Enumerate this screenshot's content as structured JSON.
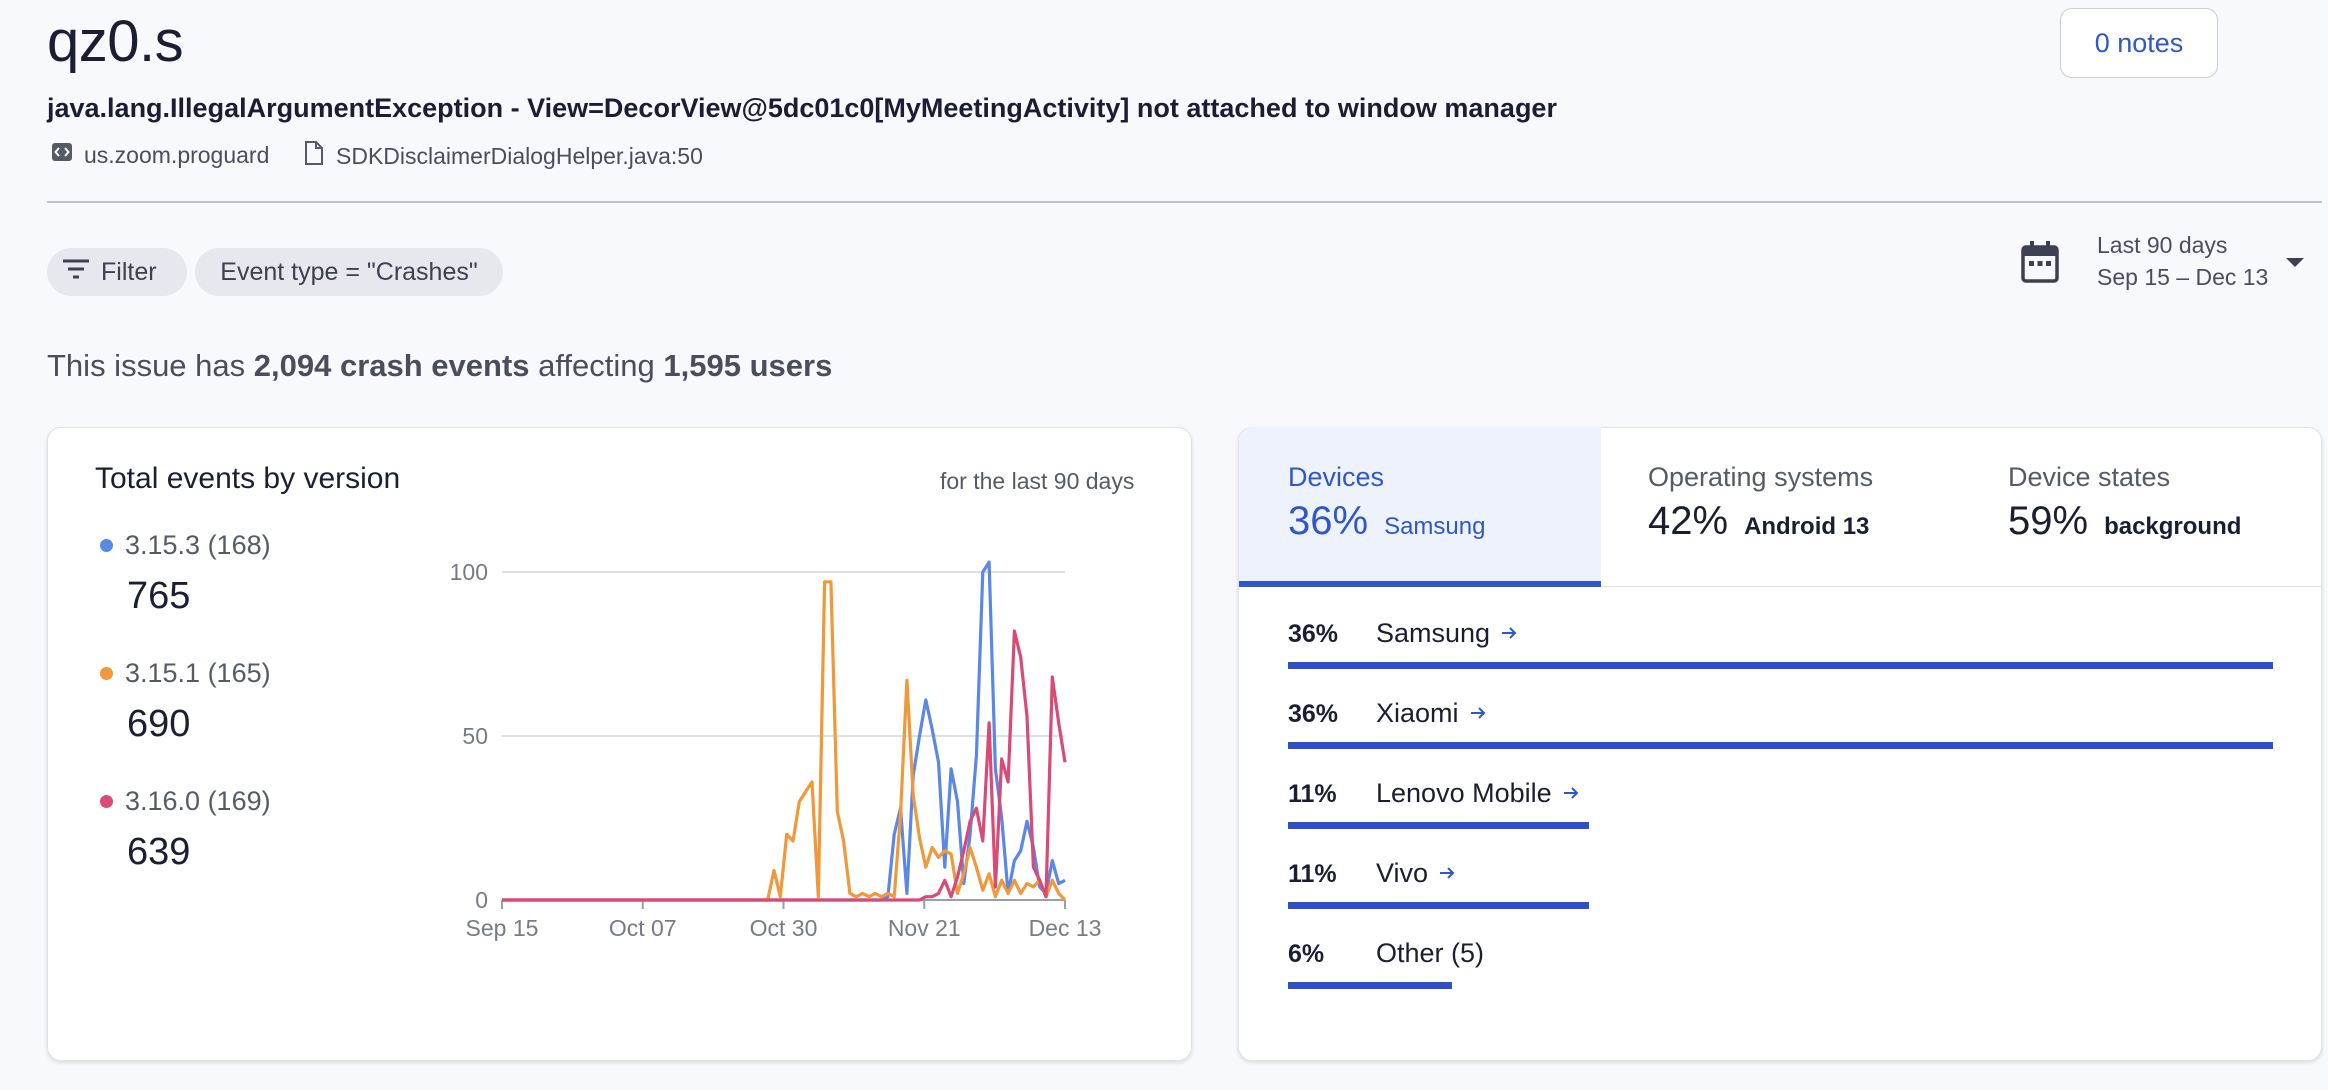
{
  "header": {
    "title": "qz0.s",
    "notes_button": "0 notes",
    "exception": "java.lang.IllegalArgumentException - View=DecorView@5dc01c0[MyMeetingActivity] not attached to window manager",
    "package_icon": "code-icon",
    "package": "us.zoom.proguard",
    "file_icon": "file-icon",
    "file": "SDKDisclaimerDialogHelper.java:50"
  },
  "filters": {
    "filter_label": "Filter",
    "event_type": "Event type = \"Crashes\""
  },
  "date_range": {
    "label": "Last 90 days",
    "range": "Sep 15 – Dec 13"
  },
  "summary": {
    "prefix": "This issue has",
    "events": "2,094 crash events",
    "middle": "affecting",
    "users": "1,595 users"
  },
  "versions_card": {
    "title": "Total events by version",
    "subtitle": "for the last 90 days",
    "legend": [
      {
        "version": "3.15.3 (168)",
        "total": "765",
        "color": "#5b87e6"
      },
      {
        "version": "3.15.1 (165)",
        "total": "690",
        "color": "#f0983a"
      },
      {
        "version": "3.16.0 (169)",
        "total": "639",
        "color": "#d94a76"
      }
    ]
  },
  "chart_data": {
    "type": "line",
    "x_ticks": [
      "Sep 15",
      "Oct 07",
      "Oct 30",
      "Nov 21",
      "Dec 13"
    ],
    "y_ticks": [
      "0",
      "50",
      "100"
    ],
    "ylim": [
      0,
      100
    ],
    "x_index_range": [
      0,
      89
    ],
    "grid": true,
    "series": [
      {
        "name": "3.15.3 (168)",
        "color": "#5b87e6",
        "points": [
          [
            0,
            0
          ],
          [
            60,
            0
          ],
          [
            61,
            1
          ],
          [
            62,
            20
          ],
          [
            63,
            28
          ],
          [
            64,
            2
          ],
          [
            65,
            38
          ],
          [
            66,
            50
          ],
          [
            67,
            61
          ],
          [
            68,
            52
          ],
          [
            69,
            42
          ],
          [
            70,
            10
          ],
          [
            71,
            40
          ],
          [
            72,
            30
          ],
          [
            73,
            5
          ],
          [
            74,
            20
          ],
          [
            75,
            44
          ],
          [
            76,
            100
          ],
          [
            77,
            103
          ],
          [
            78,
            40
          ],
          [
            79,
            25
          ],
          [
            80,
            2
          ],
          [
            81,
            12
          ],
          [
            82,
            15
          ],
          [
            83,
            24
          ],
          [
            84,
            16
          ],
          [
            85,
            4
          ],
          [
            86,
            2
          ],
          [
            87,
            12
          ],
          [
            88,
            5
          ],
          [
            89,
            6
          ]
        ]
      },
      {
        "name": "3.15.1 (165)",
        "color": "#f0983a",
        "points": [
          [
            0,
            0
          ],
          [
            42,
            0
          ],
          [
            43,
            9
          ],
          [
            44,
            1
          ],
          [
            45,
            20
          ],
          [
            46,
            18
          ],
          [
            47,
            30
          ],
          [
            48,
            33
          ],
          [
            49,
            36
          ],
          [
            50,
            1
          ],
          [
            51,
            97
          ],
          [
            52,
            97
          ],
          [
            53,
            27
          ],
          [
            54,
            18
          ],
          [
            55,
            2
          ],
          [
            56,
            1
          ],
          [
            57,
            2
          ],
          [
            58,
            1
          ],
          [
            59,
            2
          ],
          [
            60,
            1
          ],
          [
            61,
            2
          ],
          [
            62,
            1
          ],
          [
            63,
            26
          ],
          [
            64,
            67
          ],
          [
            65,
            32
          ],
          [
            66,
            19
          ],
          [
            67,
            10
          ],
          [
            68,
            16
          ],
          [
            69,
            13
          ],
          [
            70,
            15
          ],
          [
            71,
            14
          ],
          [
            72,
            2
          ],
          [
            73,
            8
          ],
          [
            74,
            16
          ],
          [
            75,
            10
          ],
          [
            76,
            3
          ],
          [
            77,
            8
          ],
          [
            78,
            1
          ],
          [
            79,
            6
          ],
          [
            80,
            2
          ],
          [
            81,
            6
          ],
          [
            82,
            2
          ],
          [
            83,
            5
          ],
          [
            84,
            4
          ],
          [
            85,
            6
          ],
          [
            86,
            1
          ],
          [
            87,
            6
          ],
          [
            88,
            2
          ],
          [
            89,
            0
          ]
        ]
      },
      {
        "name": "3.16.0 (169)",
        "color": "#d94a76",
        "points": [
          [
            0,
            0
          ],
          [
            66,
            0
          ],
          [
            67,
            1
          ],
          [
            68,
            1
          ],
          [
            69,
            2
          ],
          [
            70,
            6
          ],
          [
            71,
            1
          ],
          [
            72,
            7
          ],
          [
            73,
            15
          ],
          [
            74,
            24
          ],
          [
            75,
            28
          ],
          [
            76,
            18
          ],
          [
            77,
            54
          ],
          [
            78,
            4
          ],
          [
            79,
            43
          ],
          [
            80,
            36
          ],
          [
            81,
            82
          ],
          [
            82,
            74
          ],
          [
            83,
            56
          ],
          [
            84,
            10
          ],
          [
            85,
            6
          ],
          [
            86,
            1
          ],
          [
            87,
            68
          ],
          [
            88,
            54
          ],
          [
            89,
            42
          ]
        ]
      }
    ]
  },
  "breakdown_card": {
    "tabs": [
      {
        "label": "Devices",
        "pct": "36%",
        "name": "Samsung"
      },
      {
        "label": "Operating systems",
        "pct": "42%",
        "name": "Android 13"
      },
      {
        "label": "Device states",
        "pct": "59%",
        "name": "background"
      }
    ],
    "rows": [
      {
        "pct": "36%",
        "name": "Samsung",
        "share": 36,
        "arrow": true
      },
      {
        "pct": "36%",
        "name": "Xiaomi",
        "share": 36,
        "arrow": true
      },
      {
        "pct": "11%",
        "name": "Lenovo Mobile",
        "share": 11,
        "arrow": true
      },
      {
        "pct": "11%",
        "name": "Vivo",
        "share": 11,
        "arrow": true
      },
      {
        "pct": "6%",
        "name": "Other (5)",
        "share": 6,
        "arrow": false
      }
    ],
    "arrow_icon": "arrow-right-icon",
    "accent": "#2f57c9"
  }
}
